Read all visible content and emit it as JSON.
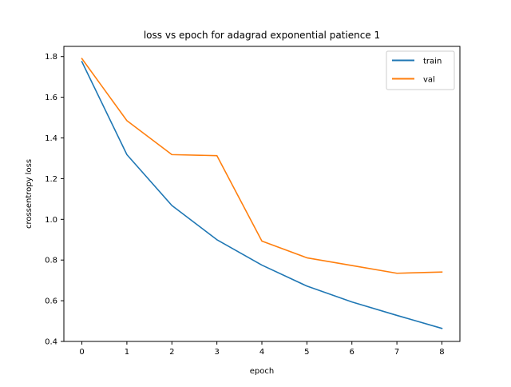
{
  "chart_data": {
    "type": "line",
    "title": "loss vs epoch for adagrad exponential patience 1",
    "xlabel": "epoch",
    "ylabel": "crossentropy loss",
    "x": [
      0,
      1,
      2,
      3,
      4,
      5,
      6,
      7,
      8
    ],
    "x_ticks": [
      "0",
      "1",
      "2",
      "3",
      "4",
      "5",
      "6",
      "7",
      "8"
    ],
    "y_ticks": [
      "0.4",
      "0.6",
      "0.8",
      "1.0",
      "1.2",
      "1.4",
      "1.6",
      "1.8"
    ],
    "xlim": [
      -0.4,
      8.4
    ],
    "ylim": [
      0.4,
      1.85
    ],
    "grid": false,
    "legend_position": "top-right",
    "series": [
      {
        "name": "train",
        "color": "#1f77b4",
        "values": [
          1.775,
          1.318,
          1.068,
          0.9,
          0.775,
          0.672,
          0.594,
          0.528,
          0.464
        ]
      },
      {
        "name": "val",
        "color": "#ff7f0e",
        "values": [
          1.79,
          1.485,
          1.318,
          1.313,
          0.893,
          0.811,
          0.773,
          0.735,
          0.741
        ]
      }
    ]
  }
}
